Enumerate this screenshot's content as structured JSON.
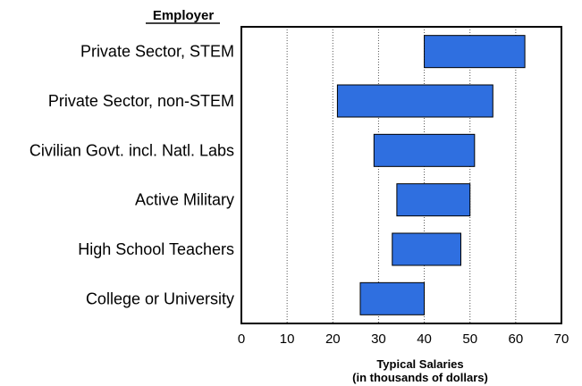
{
  "chart_data": {
    "type": "bar",
    "orientation": "horizontal-range",
    "category_header": "Employer",
    "categories": [
      "Private Sector, STEM",
      "Private Sector, non-STEM",
      "Civilian Govt. incl. Natl. Labs",
      "Active Military",
      "High School Teachers",
      "College or University"
    ],
    "ranges": [
      [
        40,
        62
      ],
      [
        21,
        55
      ],
      [
        29,
        51
      ],
      [
        34,
        50
      ],
      [
        33,
        48
      ],
      [
        26,
        40
      ]
    ],
    "xlabel_lines": [
      "Typical Salaries",
      "(in thousands of dollars)"
    ],
    "xlim": [
      0,
      70
    ],
    "xticks": [
      0,
      10,
      20,
      30,
      40,
      50,
      60,
      70
    ],
    "grid": "vertical dotted",
    "bar_color": "#2f6fe0",
    "bar_stroke": "#000000"
  }
}
